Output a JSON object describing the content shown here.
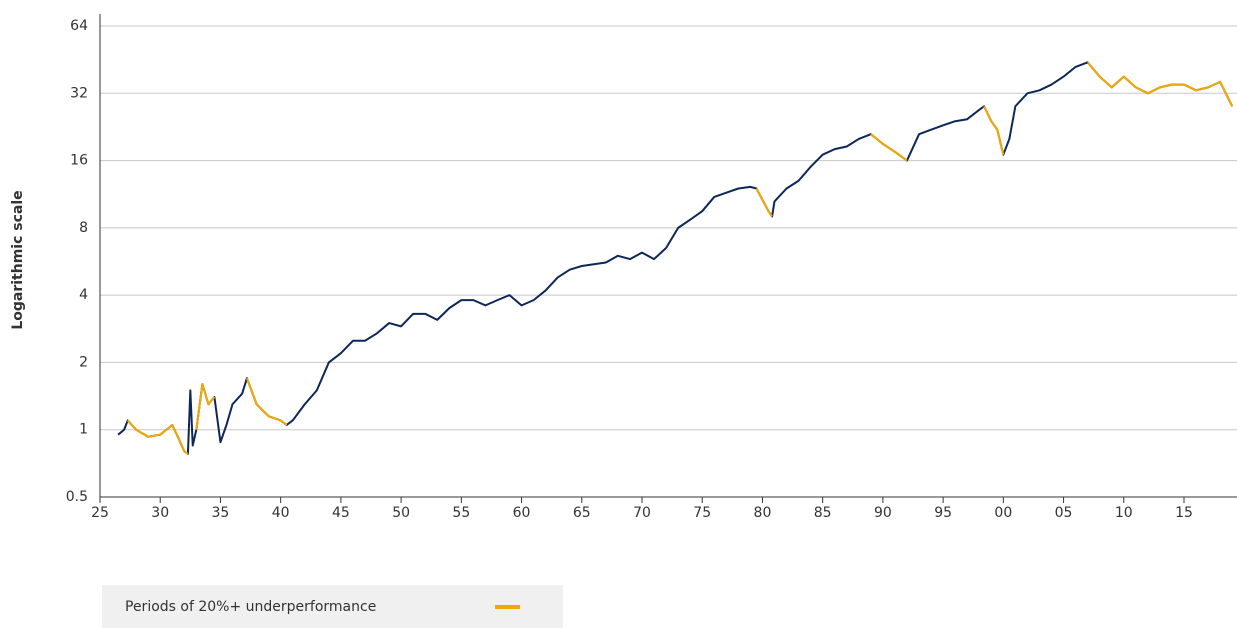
{
  "chart_data": {
    "type": "line",
    "y_label": "Logarithmic scale",
    "log_scale": true,
    "grid": true,
    "legend": "bottom-left",
    "x": [
      1926.5,
      1927,
      1927.3,
      1928,
      1929,
      1930,
      1931,
      1931.5,
      1932,
      1932.3,
      1932.5,
      1932.7,
      1933,
      1933.5,
      1934,
      1934.5,
      1935,
      1935.5,
      1936,
      1936.8,
      1937.2,
      1938,
      1939,
      1940,
      1940.5,
      1941,
      1942,
      1943,
      1944,
      1945,
      1946,
      1947,
      1948,
      1949,
      1950,
      1951,
      1952,
      1953,
      1954,
      1955,
      1956,
      1957,
      1958,
      1959,
      1960,
      1961,
      1962,
      1963,
      1964,
      1965,
      1966,
      1967,
      1968,
      1969,
      1970,
      1971,
      1972,
      1973,
      1974,
      1975,
      1976,
      1977,
      1978,
      1979,
      1979.5,
      1980.5,
      1980.8,
      1981,
      1982,
      1983,
      1984,
      1985,
      1986,
      1987,
      1988,
      1989,
      1990,
      1991,
      1992,
      1993,
      1994,
      1995,
      1996,
      1997,
      1998,
      1998.4,
      1999,
      1999.5,
      2000,
      2000.5,
      2001,
      2002,
      2003,
      2004,
      2005,
      2006,
      2007,
      2008,
      2009,
      2010,
      2011,
      2012,
      2013,
      2014,
      2015,
      2016,
      2017,
      2018,
      2019
    ],
    "series": [
      {
        "color": "#0d2758",
        "values": [
          0.95,
          1.0,
          1.1,
          1.0,
          0.93,
          0.95,
          1.05,
          0.92,
          0.8,
          0.78,
          1.5,
          0.85,
          1.0,
          1.6,
          1.3,
          1.4,
          0.88,
          1.05,
          1.3,
          1.45,
          1.7,
          1.3,
          1.15,
          1.1,
          1.05,
          1.1,
          1.3,
          1.5,
          2.0,
          2.2,
          2.5,
          2.5,
          2.7,
          3.0,
          2.9,
          3.3,
          3.3,
          3.1,
          3.5,
          3.8,
          3.8,
          3.6,
          3.8,
          4.0,
          3.6,
          3.8,
          4.2,
          4.8,
          5.2,
          5.4,
          5.5,
          5.6,
          6.0,
          5.8,
          6.2,
          5.8,
          6.5,
          8.0,
          8.7,
          9.5,
          11,
          11.5,
          12,
          12.2,
          12,
          9.5,
          9.0,
          10.5,
          12,
          13,
          15,
          17,
          18,
          18.5,
          20,
          21,
          19,
          17.5,
          16,
          21,
          22,
          23,
          24,
          24.5,
          27,
          28,
          24,
          22,
          17,
          20,
          28,
          32,
          33,
          35,
          38,
          42,
          44,
          38,
          34,
          38,
          34,
          32,
          34,
          35,
          35,
          33,
          34,
          36,
          28
        ]
      },
      {
        "name": "Periods of 20%+ underperformance",
        "color": "#f2a900",
        "values": [
          null,
          null,
          1.1,
          1.0,
          0.93,
          0.95,
          1.05,
          0.92,
          0.8,
          0.78,
          null,
          null,
          1.0,
          1.6,
          1.3,
          1.4,
          null,
          null,
          null,
          null,
          1.7,
          1.3,
          1.15,
          1.1,
          1.05,
          null,
          null,
          null,
          null,
          null,
          null,
          null,
          null,
          null,
          null,
          null,
          null,
          null,
          null,
          null,
          null,
          null,
          null,
          null,
          null,
          null,
          null,
          null,
          null,
          null,
          null,
          null,
          null,
          null,
          null,
          null,
          null,
          null,
          null,
          null,
          null,
          null,
          null,
          null,
          12,
          9.5,
          9.0,
          null,
          null,
          null,
          null,
          null,
          null,
          null,
          null,
          21,
          19,
          17.5,
          16,
          null,
          null,
          null,
          null,
          null,
          null,
          28,
          24,
          22,
          17,
          null,
          null,
          null,
          null,
          null,
          null,
          null,
          44,
          38,
          34,
          38,
          34,
          32,
          34,
          35,
          35,
          33,
          34,
          36,
          28
        ]
      }
    ],
    "xlim": [
      1925,
      2019.4
    ],
    "xticks": [
      {
        "value": 1925,
        "label": "25"
      },
      {
        "value": 1930,
        "label": "30"
      },
      {
        "value": 1935,
        "label": "35"
      },
      {
        "value": 1940,
        "label": "40"
      },
      {
        "value": 1945,
        "label": "45"
      },
      {
        "value": 1950,
        "label": "50"
      },
      {
        "value": 1955,
        "label": "55"
      },
      {
        "value": 1960,
        "label": "60"
      },
      {
        "value": 1965,
        "label": "65"
      },
      {
        "value": 1970,
        "label": "70"
      },
      {
        "value": 1975,
        "label": "75"
      },
      {
        "value": 1980,
        "label": "80"
      },
      {
        "value": 1985,
        "label": "85"
      },
      {
        "value": 1990,
        "label": "90"
      },
      {
        "value": 1995,
        "label": "95"
      },
      {
        "value": 2000,
        "label": "00"
      },
      {
        "value": 2005,
        "label": "05"
      },
      {
        "value": 2010,
        "label": "10"
      },
      {
        "value": 2015,
        "label": "15"
      }
    ],
    "ylim": [
      0.5,
      64
    ],
    "yticks": [
      0.5,
      1,
      2,
      4,
      8,
      16,
      32,
      64
    ]
  }
}
